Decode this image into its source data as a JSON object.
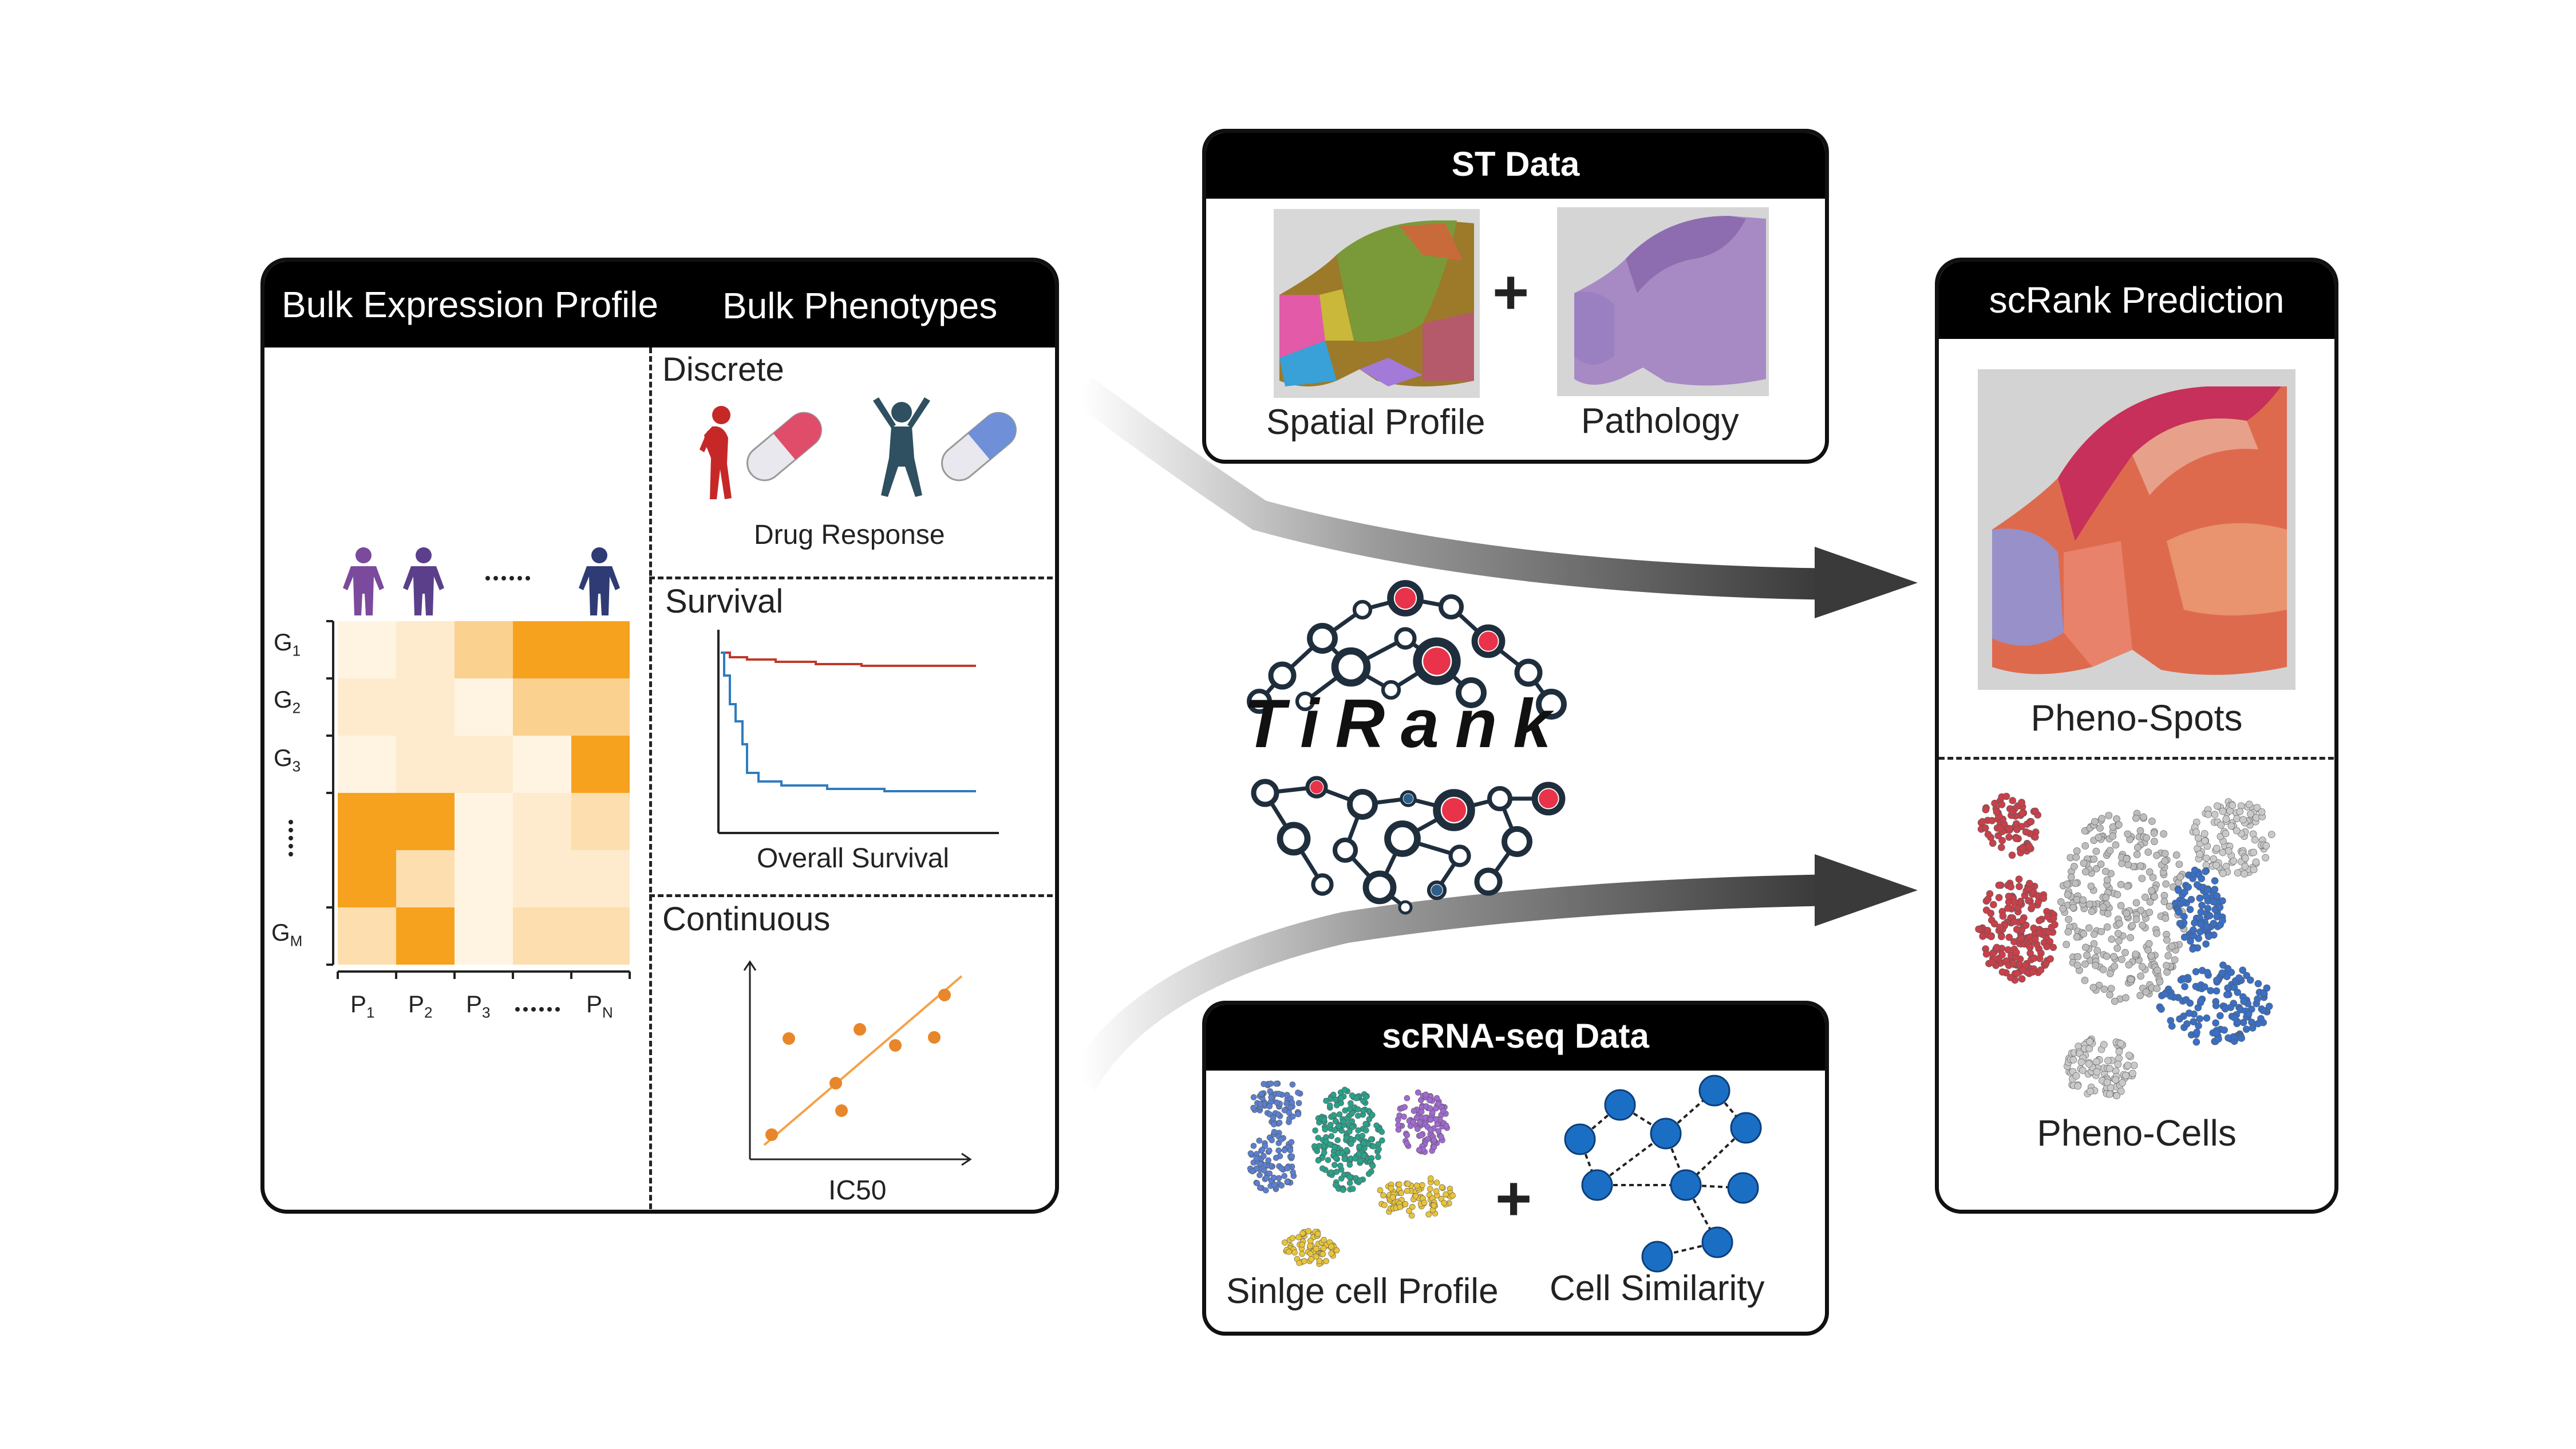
{
  "bulk_panel": {
    "header_left": "Bulk Expression Profile",
    "header_right": "Bulk Phenotypes",
    "gene_labels": [
      {
        "letter": "G",
        "sub": "1"
      },
      {
        "letter": "G",
        "sub": "2"
      },
      {
        "letter": "G",
        "sub": "3"
      },
      {
        "letter": "G",
        "sub": "M"
      }
    ],
    "patient_labels": [
      {
        "letter": "P",
        "sub": "1"
      },
      {
        "letter": "P",
        "sub": "2"
      },
      {
        "letter": "P",
        "sub": "3"
      },
      {
        "letter": "P",
        "sub": "N"
      }
    ],
    "heatmap_levels": [
      [
        0.05,
        0.15,
        0.45,
        1.0,
        1.0
      ],
      [
        0.15,
        0.15,
        0.05,
        0.45,
        0.45
      ],
      [
        0.05,
        0.15,
        0.15,
        0.05,
        1.0
      ],
      [
        1.0,
        1.0,
        0.05,
        0.15,
        0.3
      ],
      [
        1.0,
        0.3,
        0.05,
        0.15,
        0.15
      ],
      [
        0.3,
        1.0,
        0.05,
        0.3,
        0.3
      ]
    ],
    "colors": {
      "heat_high": "#f7a21e",
      "heat_low": "#fff8ec",
      "person_purple": "#7b4a9c",
      "person_navy": "#2f3b74"
    }
  },
  "phenotypes": {
    "discrete": {
      "title": "Discrete",
      "caption": "Drug Response"
    },
    "survival": {
      "title": "Survival",
      "caption": "Overall Survival"
    },
    "continuous": {
      "title": "Continuous",
      "caption": "IC50"
    }
  },
  "st_panel": {
    "header": "ST Data",
    "left_label": "Spatial Profile",
    "right_label": "Pathology",
    "plus": "+"
  },
  "scrna_panel": {
    "header": "scRNA-seq Data",
    "left_label": "Sinlge cell Profile",
    "right_label": "Cell Similarity",
    "plus": "+"
  },
  "center_logo": {
    "text": "TiRank",
    "colors": {
      "dark": "#1f2e3d",
      "red": "#e8334a",
      "blue": "#2c5f8a"
    }
  },
  "prediction_panel": {
    "header": "scRank Prediction",
    "top_label": "Pheno-Spots",
    "bottom_label": "Pheno-Cells"
  }
}
